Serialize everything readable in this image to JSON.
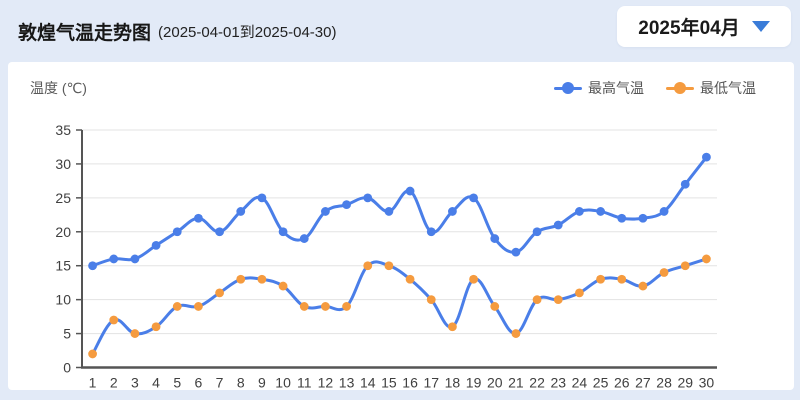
{
  "header": {
    "title": "敦煌气温走势图",
    "subtitle": "(2025-04-01到2025-04-30)",
    "month_selector": {
      "label": "2025年04月",
      "icon": "chevron-down-icon"
    }
  },
  "chart": {
    "y_axis_title": "温度 (℃)",
    "legend": {
      "high": {
        "label": "最高气温",
        "color": "#4a7ee8"
      },
      "low": {
        "label": "最低气温",
        "color": "#f59b3f"
      }
    }
  },
  "chart_data": {
    "type": "line",
    "title": "敦煌气温走势图 (2025-04-01到2025-04-30)",
    "xlabel": "",
    "ylabel": "温度 (℃)",
    "x": [
      1,
      2,
      3,
      4,
      5,
      6,
      7,
      8,
      9,
      10,
      11,
      12,
      13,
      14,
      15,
      16,
      17,
      18,
      19,
      20,
      21,
      22,
      23,
      24,
      25,
      26,
      27,
      28,
      29,
      30
    ],
    "ylim": [
      0,
      35
    ],
    "yticks": [
      0,
      5,
      10,
      15,
      20,
      25,
      30,
      35
    ],
    "grid": true,
    "legend_position": "top-right",
    "series": [
      {
        "name": "最高气温",
        "line_color": "#4a7ee8",
        "marker_color": "#4a7ee8",
        "values": [
          15,
          16,
          16,
          18,
          20,
          22,
          20,
          23,
          25,
          20,
          19,
          23,
          24,
          25,
          23,
          26,
          20,
          23,
          25,
          19,
          17,
          20,
          21,
          23,
          23,
          22,
          22,
          23,
          27,
          31
        ]
      },
      {
        "name": "最低气温",
        "line_color": "#4a7ee8",
        "marker_color": "#f59b3f",
        "values": [
          2,
          7,
          5,
          6,
          9,
          9,
          11,
          13,
          13,
          12,
          9,
          9,
          9,
          15,
          15,
          13,
          10,
          6,
          13,
          9,
          5,
          10,
          10,
          11,
          13,
          13,
          12,
          14,
          15,
          16
        ]
      }
    ]
  },
  "colors": {
    "page_background": "#e2eaf7",
    "panel_background": "#ffffff",
    "accent_blue": "#3a7cd8",
    "line_blue": "#4a7ee8",
    "marker_orange": "#f59b3f",
    "grid_line": "#e3e3e3",
    "axis_line": "#555555",
    "tick_label": "#404040"
  }
}
